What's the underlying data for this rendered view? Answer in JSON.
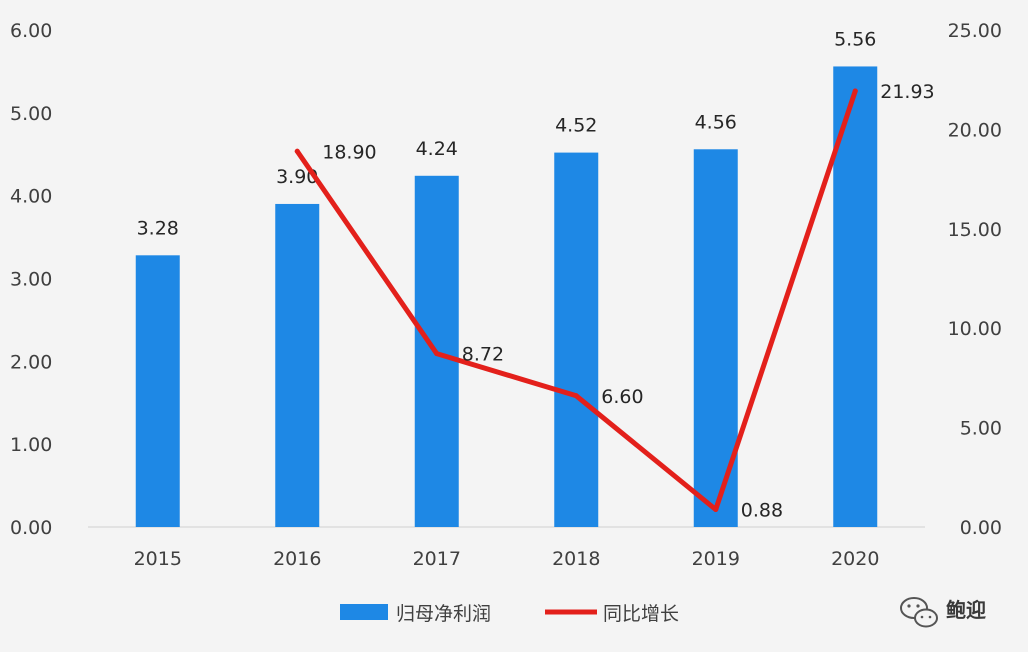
{
  "chart_data": {
    "type": "bar",
    "categories": [
      "2015",
      "2016",
      "2017",
      "2018",
      "2019",
      "2020"
    ],
    "series": [
      {
        "name": "归母净利润",
        "type": "bar",
        "axis": "left",
        "color": "#1e88e5",
        "values": [
          3.28,
          3.9,
          4.24,
          4.52,
          4.56,
          5.56
        ],
        "labels": [
          "3.28",
          "3.90",
          "4.24",
          "4.52",
          "4.56",
          "5.56"
        ]
      },
      {
        "name": "同比增长",
        "type": "line",
        "axis": "right",
        "color": "#e3201b",
        "values": [
          null,
          18.9,
          8.72,
          6.6,
          0.88,
          21.93
        ],
        "labels": [
          "",
          "18.90",
          "8.72",
          "6.60",
          "0.88",
          "21.93"
        ]
      }
    ],
    "y_left": {
      "min": 0,
      "max": 6,
      "ticks": [
        "0.00",
        "1.00",
        "2.00",
        "3.00",
        "4.00",
        "5.00",
        "6.00"
      ]
    },
    "y_right": {
      "min": 0,
      "max": 25,
      "ticks": [
        "0.00",
        "5.00",
        "10.00",
        "15.00",
        "20.00",
        "25.00"
      ]
    },
    "title": "",
    "xlabel": "",
    "ylabel": "",
    "grid": false,
    "legend_position": "bottom"
  },
  "watermark": {
    "icon": "wechat-icon",
    "text": "鲍迎"
  }
}
